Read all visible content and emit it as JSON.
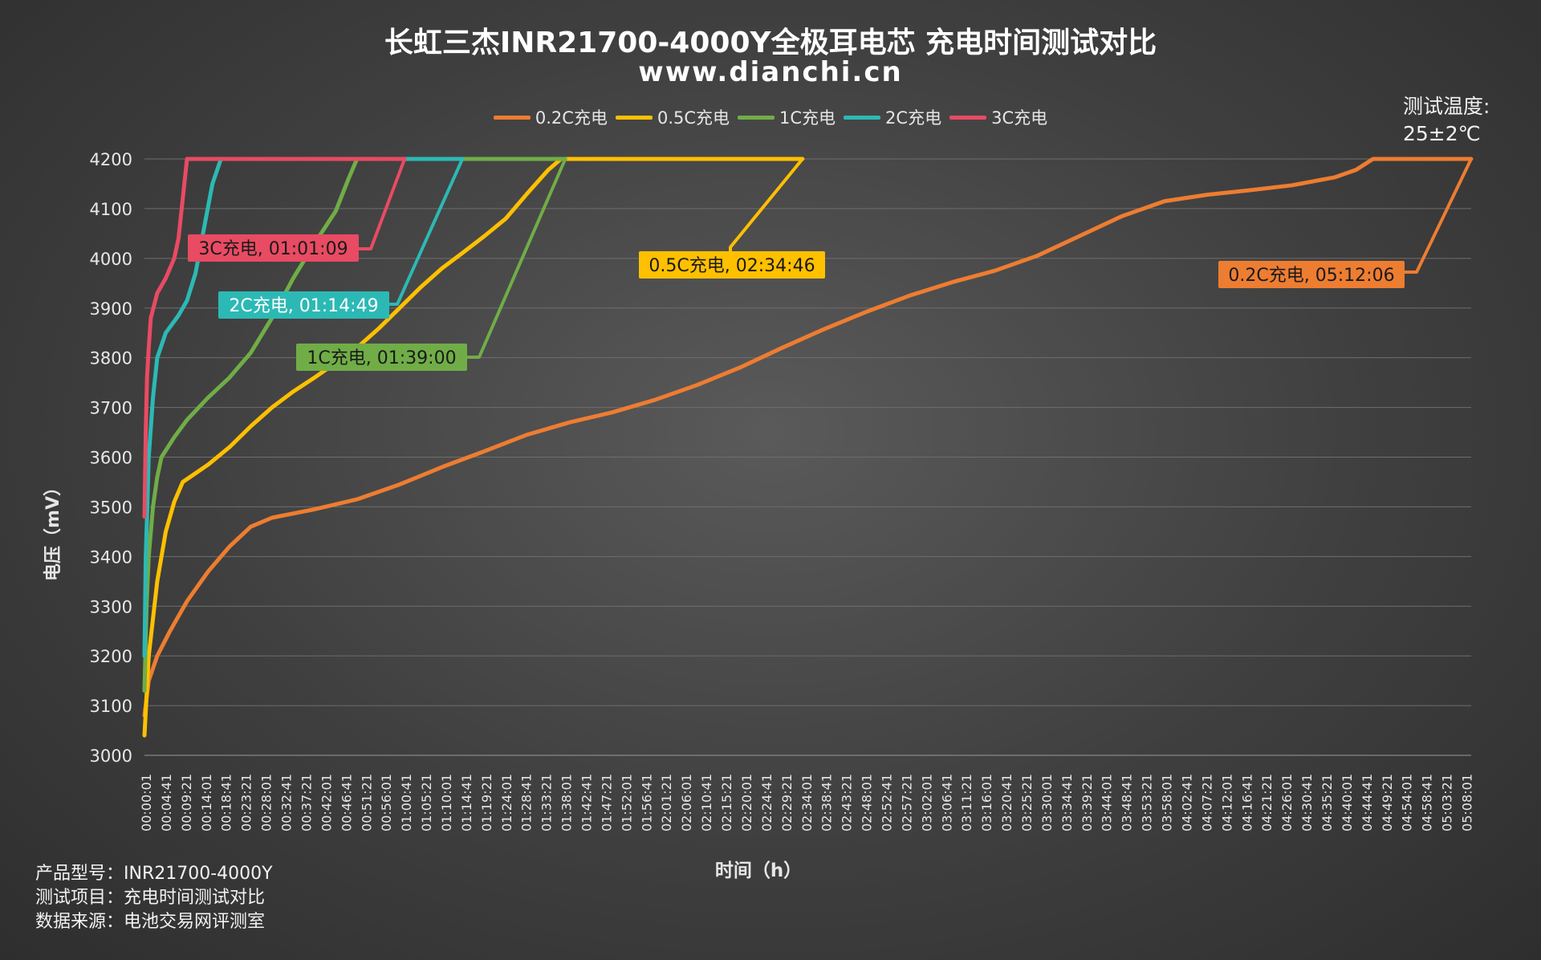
{
  "title": "长虹三杰INR21700-4000Y全极耳电芯 充电时间测试对比",
  "subtitle": "www.dianchi.cn",
  "temperature": {
    "label": "测试温度:",
    "value": "25±2℃"
  },
  "info": {
    "model": "产品型号：INR21700-4000Y",
    "item": "测试项目：充电时间测试对比",
    "source": "数据来源：电池交易网评测室"
  },
  "chart_data": {
    "type": "line",
    "xlabel": "时间（h）",
    "ylabel": "电压（mV）",
    "ylim": [
      3000,
      4200
    ],
    "yticks": [
      3000,
      3100,
      3200,
      3300,
      3400,
      3500,
      3600,
      3700,
      3800,
      3900,
      4000,
      4100,
      4200
    ],
    "x_unit": "minutes",
    "xlim": [
      0,
      312.1
    ],
    "xticks": [
      "00:00:01",
      "00:04:41",
      "00:09:21",
      "00:14:01",
      "00:18:41",
      "00:23:21",
      "00:28:01",
      "00:32:41",
      "00:37:21",
      "00:42:01",
      "00:46:41",
      "00:51:21",
      "00:56:01",
      "01:00:41",
      "01:05:21",
      "01:10:01",
      "01:14:41",
      "01:19:21",
      "01:24:01",
      "01:28:41",
      "01:33:21",
      "01:38:01",
      "01:42:41",
      "01:47:21",
      "01:52:01",
      "01:56:41",
      "02:01:21",
      "02:06:01",
      "02:10:41",
      "02:15:21",
      "02:20:01",
      "02:24:41",
      "02:29:21",
      "02:34:01",
      "02:38:41",
      "02:43:21",
      "02:48:01",
      "02:52:41",
      "02:57:21",
      "03:02:01",
      "03:06:41",
      "03:11:21",
      "03:16:01",
      "03:20:41",
      "03:25:21",
      "03:30:01",
      "03:34:41",
      "03:39:21",
      "03:44:01",
      "03:48:41",
      "03:53:21",
      "03:58:01",
      "04:02:41",
      "04:07:21",
      "04:12:01",
      "04:16:41",
      "04:21:21",
      "04:26:01",
      "04:30:41",
      "04:35:21",
      "04:40:01",
      "04:44:41",
      "04:49:21",
      "04:54:01",
      "04:58:41",
      "05:03:21",
      "05:08:01"
    ],
    "legend_position": "top",
    "grid": true,
    "series": [
      {
        "name": "0.2C充电",
        "color": "#ED7D31",
        "annotation": "0.2C充电, 05:12:06",
        "points": [
          [
            0,
            3080
          ],
          [
            1,
            3150
          ],
          [
            3,
            3200
          ],
          [
            6,
            3250
          ],
          [
            10,
            3310
          ],
          [
            15,
            3370
          ],
          [
            20,
            3420
          ],
          [
            25,
            3460
          ],
          [
            30,
            3478
          ],
          [
            40,
            3495
          ],
          [
            50,
            3515
          ],
          [
            60,
            3545
          ],
          [
            70,
            3580
          ],
          [
            80,
            3612
          ],
          [
            90,
            3645
          ],
          [
            100,
            3670
          ],
          [
            110,
            3690
          ],
          [
            120,
            3715
          ],
          [
            130,
            3745
          ],
          [
            140,
            3780
          ],
          [
            150,
            3820
          ],
          [
            160,
            3858
          ],
          [
            170,
            3893
          ],
          [
            180,
            3925
          ],
          [
            190,
            3952
          ],
          [
            200,
            3975
          ],
          [
            210,
            4005
          ],
          [
            220,
            4045
          ],
          [
            230,
            4085
          ],
          [
            240,
            4115
          ],
          [
            250,
            4128
          ],
          [
            260,
            4137
          ],
          [
            270,
            4147
          ],
          [
            280,
            4163
          ],
          [
            285,
            4178
          ],
          [
            289,
            4200
          ],
          [
            312.1,
            4200
          ]
        ]
      },
      {
        "name": "0.5C充电",
        "color": "#FFC000",
        "annotation": "0.5C充电, 02:34:46",
        "points": [
          [
            0,
            3040
          ],
          [
            1,
            3200
          ],
          [
            3,
            3350
          ],
          [
            5,
            3450
          ],
          [
            7,
            3510
          ],
          [
            9,
            3550
          ],
          [
            15,
            3585
          ],
          [
            20,
            3620
          ],
          [
            25,
            3662
          ],
          [
            30,
            3700
          ],
          [
            35,
            3732
          ],
          [
            40,
            3760
          ],
          [
            45,
            3790
          ],
          [
            50,
            3820
          ],
          [
            55,
            3858
          ],
          [
            60,
            3900
          ],
          [
            65,
            3942
          ],
          [
            70,
            3980
          ],
          [
            75,
            4012
          ],
          [
            80,
            4045
          ],
          [
            85,
            4080
          ],
          [
            90,
            4130
          ],
          [
            95,
            4178
          ],
          [
            98,
            4200
          ],
          [
            154.8,
            4200
          ]
        ]
      },
      {
        "name": "1C充电",
        "color": "#70AD47",
        "annotation": "1C充电, 01:39:00",
        "points": [
          [
            0,
            3130
          ],
          [
            0.5,
            3300
          ],
          [
            1,
            3400
          ],
          [
            2,
            3500
          ],
          [
            3,
            3560
          ],
          [
            4,
            3600
          ],
          [
            7,
            3640
          ],
          [
            10,
            3675
          ],
          [
            15,
            3720
          ],
          [
            20,
            3760
          ],
          [
            25,
            3810
          ],
          [
            30,
            3880
          ],
          [
            35,
            3960
          ],
          [
            40,
            4030
          ],
          [
            45,
            4095
          ],
          [
            48,
            4160
          ],
          [
            50,
            4200
          ],
          [
            99,
            4200
          ]
        ]
      },
      {
        "name": "2C充电",
        "color": "#2CB9B5",
        "annotation": "2C充电, 01:14:49",
        "points": [
          [
            0,
            3200
          ],
          [
            0.3,
            3400
          ],
          [
            0.6,
            3480
          ],
          [
            1,
            3600
          ],
          [
            2,
            3720
          ],
          [
            3,
            3800
          ],
          [
            5,
            3850
          ],
          [
            8,
            3885
          ],
          [
            10,
            3915
          ],
          [
            12,
            3970
          ],
          [
            14,
            4060
          ],
          [
            16,
            4150
          ],
          [
            18,
            4200
          ],
          [
            74.8,
            4200
          ]
        ]
      },
      {
        "name": "3C充电",
        "color": "#E84B63",
        "annotation": "3C充电, 01:01:09",
        "points": [
          [
            0,
            3480
          ],
          [
            0.3,
            3650
          ],
          [
            0.6,
            3760
          ],
          [
            1,
            3820
          ],
          [
            1.5,
            3880
          ],
          [
            3,
            3930
          ],
          [
            5,
            3960
          ],
          [
            7,
            4000
          ],
          [
            8,
            4040
          ],
          [
            9,
            4120
          ],
          [
            10,
            4200
          ],
          [
            61.2,
            4200
          ]
        ]
      }
    ]
  }
}
